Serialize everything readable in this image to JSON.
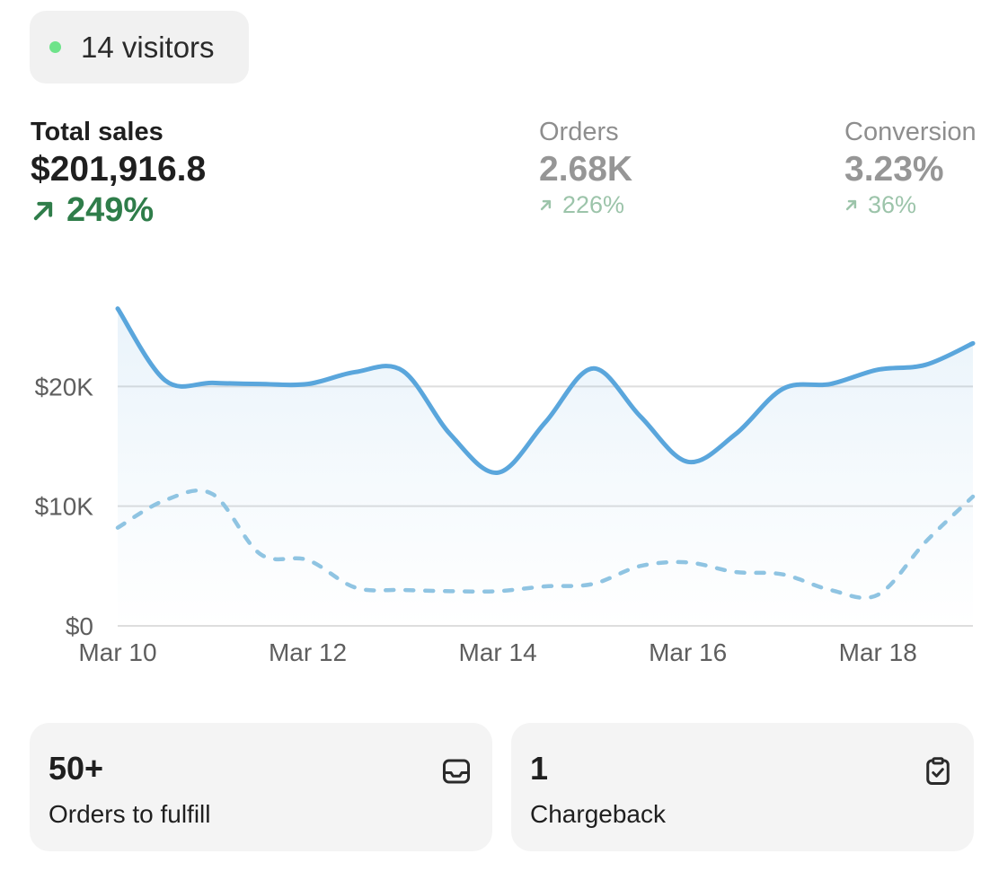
{
  "visitors": {
    "label": "14 visitors",
    "dot_color": "#6ee38a"
  },
  "metrics": {
    "total_sales": {
      "label": "Total sales",
      "value": "$201,916.8",
      "delta": "249%",
      "color": "#2f7d4a"
    },
    "orders": {
      "label": "Orders",
      "value": "2.68K",
      "delta": "226%",
      "color": "#9cc4aa"
    },
    "conversion": {
      "label": "Conversion",
      "value": "3.23%",
      "delta": "36%",
      "color": "#9cc4aa"
    }
  },
  "chart_data": {
    "type": "line",
    "x": [
      "Mar 10",
      "Mar 10.5",
      "Mar 11",
      "Mar 11.5",
      "Mar 12",
      "Mar 12.5",
      "Mar 13",
      "Mar 13.5",
      "Mar 14",
      "Mar 14.5",
      "Mar 15",
      "Mar 15.5",
      "Mar 16",
      "Mar 16.5",
      "Mar 17",
      "Mar 17.5",
      "Mar 18",
      "Mar 18.5",
      "Mar 19"
    ],
    "x_ticks": [
      "Mar 10",
      "Mar 12",
      "Mar 14",
      "Mar 16",
      "Mar 18"
    ],
    "y_ticks": [
      "$0",
      "$10K",
      "$20K"
    ],
    "ylim": [
      0,
      27000
    ],
    "series": [
      {
        "style": "solid",
        "color": "#5aa6dc",
        "values": [
          26500,
          20500,
          20300,
          20200,
          20200,
          21200,
          21300,
          16000,
          12800,
          17000,
          21500,
          17500,
          13700,
          16000,
          19800,
          20200,
          21400,
          21800,
          23600
        ]
      },
      {
        "style": "dotted",
        "color": "#8fc4e2",
        "values": [
          8200,
          10500,
          11000,
          6000,
          5500,
          3200,
          3000,
          2900,
          2900,
          3300,
          3500,
          5000,
          5300,
          4500,
          4300,
          3000,
          2600,
          7000,
          10800
        ]
      }
    ],
    "grid": true,
    "legend": "none"
  },
  "cards": [
    {
      "value": "50+",
      "label": "Orders to fulfill",
      "icon": "inbox-icon"
    },
    {
      "value": "1",
      "label": "Chargeback",
      "icon": "clipboard-check-icon"
    }
  ]
}
